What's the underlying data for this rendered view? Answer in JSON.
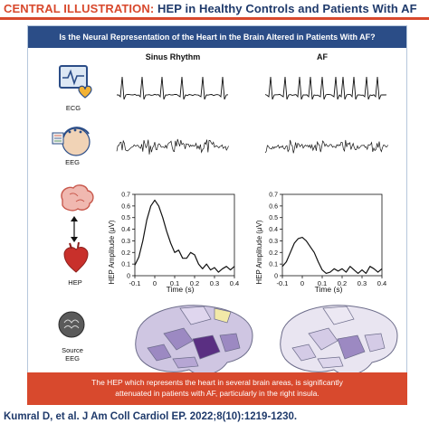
{
  "header": {
    "prefix": "CENTRAL ILLUSTRATION:",
    "title": "HEP in Healthy Controls and Patients With AF"
  },
  "question": "Is the Neural Representation of the Heart in the Brain Altered in Patients With AF?",
  "columns": {
    "sinus": "Sinus Rhythm",
    "af": "AF"
  },
  "rows": {
    "ecg": "ECG",
    "eeg": "EEG",
    "hep": "HEP",
    "source_line1": "Source",
    "source_line2": "EEG"
  },
  "chart_data": [
    {
      "type": "line",
      "panel": "Sinus Rhythm",
      "xlabel": "Time (s)",
      "ylabel": "HEP Amplitude (μV)",
      "xlim": [
        -0.1,
        0.4
      ],
      "ylim": [
        0,
        0.7
      ],
      "xticks": [
        -0.1,
        0,
        0.1,
        0.2,
        0.3,
        0.4
      ],
      "yticks": [
        0,
        0.1,
        0.2,
        0.3,
        0.4,
        0.5,
        0.6,
        0.7
      ],
      "grid": false,
      "series": [
        {
          "x": [
            -0.1,
            -0.08,
            -0.06,
            -0.04,
            -0.02,
            0,
            0.02,
            0.04,
            0.06,
            0.08,
            0.1,
            0.12,
            0.14,
            0.16,
            0.18,
            0.2,
            0.22,
            0.24,
            0.26,
            0.28,
            0.3,
            0.32,
            0.34,
            0.36,
            0.38,
            0.4
          ],
          "y": [
            0.09,
            0.16,
            0.3,
            0.48,
            0.6,
            0.65,
            0.6,
            0.5,
            0.38,
            0.28,
            0.2,
            0.22,
            0.15,
            0.15,
            0.2,
            0.18,
            0.1,
            0.06,
            0.1,
            0.05,
            0.07,
            0.03,
            0.06,
            0.08,
            0.05,
            0.08
          ]
        }
      ]
    },
    {
      "type": "line",
      "panel": "AF",
      "xlabel": "Time (s)",
      "ylabel": "HEP Amplitude (μV)",
      "xlim": [
        -0.1,
        0.4
      ],
      "ylim": [
        0,
        0.7
      ],
      "xticks": [
        -0.1,
        0,
        0.1,
        0.2,
        0.3,
        0.4
      ],
      "yticks": [
        0,
        0.1,
        0.2,
        0.3,
        0.4,
        0.5,
        0.6,
        0.7
      ],
      "grid": false,
      "series": [
        {
          "x": [
            -0.1,
            -0.08,
            -0.06,
            -0.04,
            -0.02,
            0,
            0.02,
            0.04,
            0.06,
            0.08,
            0.1,
            0.12,
            0.14,
            0.16,
            0.18,
            0.2,
            0.22,
            0.24,
            0.26,
            0.28,
            0.3,
            0.32,
            0.34,
            0.36,
            0.38,
            0.4
          ],
          "y": [
            0.08,
            0.12,
            0.2,
            0.28,
            0.32,
            0.33,
            0.3,
            0.25,
            0.2,
            0.12,
            0.05,
            0.02,
            0.03,
            0.06,
            0.04,
            0.06,
            0.03,
            0.08,
            0.05,
            0.02,
            0.05,
            0.02,
            0.08,
            0.06,
            0.03,
            0.06
          ]
        }
      ]
    }
  ],
  "colors": {
    "accent": "#d8492d",
    "navy": "#2b4d87",
    "brain_dark": "#5a2f82",
    "brain_mid": "#9c89c2",
    "brain_light": "#cfc6e2"
  },
  "icons": {
    "ecg": "ecg-monitor-icon",
    "eeg": "eeg-head-icon",
    "brain": "brain-icon",
    "heart": "heart-icon",
    "source": "source-head-icon"
  },
  "footer": {
    "line1": "The HEP which represents the heart in several brain areas, is significantly",
    "line2": "attenuated in patients with AF, particularly in the right insula."
  },
  "citation": "Kumral D, et al. J Am Coll Cardiol EP. 2022;8(10):1219-1230."
}
